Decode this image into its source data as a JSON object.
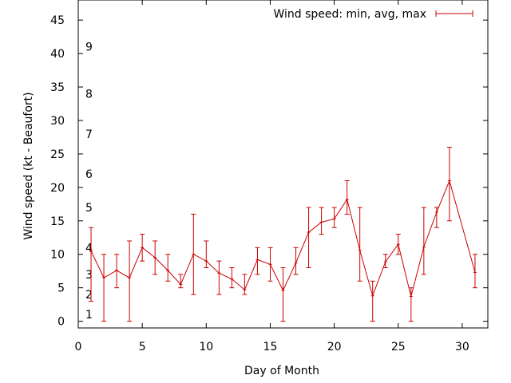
{
  "chart_data": {
    "type": "line",
    "xlabel": "Day of Month",
    "ylabel": "Wind speed (kt - Beaufort)",
    "xlim": [
      0,
      32
    ],
    "ylim": [
      -1,
      48
    ],
    "xticks": [
      0,
      5,
      10,
      15,
      20,
      25,
      30
    ],
    "yticks": [
      0,
      5,
      10,
      15,
      20,
      25,
      30,
      35,
      40,
      45
    ],
    "beaufort_labels": [
      {
        "label": "1",
        "y": 1
      },
      {
        "label": "2",
        "y": 4
      },
      {
        "label": "3",
        "y": 7
      },
      {
        "label": "4",
        "y": 11
      },
      {
        "label": "5",
        "y": 17
      },
      {
        "label": "6",
        "y": 22
      },
      {
        "label": "7",
        "y": 28
      },
      {
        "label": "8",
        "y": 34
      },
      {
        "label": "9",
        "y": 41
      }
    ],
    "grid": false,
    "legend_position": "top-right",
    "series": [
      {
        "name": "Wind speed: min, avg, max",
        "color": "#cc0000",
        "points": [
          {
            "x": 1,
            "avg": 10.5,
            "min": 3,
            "max": 14
          },
          {
            "x": 2,
            "avg": 6.5,
            "min": 0,
            "max": 10
          },
          {
            "x": 3,
            "avg": 7.6,
            "min": 5,
            "max": 10
          },
          {
            "x": 4,
            "avg": 6.5,
            "min": 0,
            "max": 12
          },
          {
            "x": 5,
            "avg": 11,
            "min": 9,
            "max": 13
          },
          {
            "x": 6,
            "avg": 9.5,
            "min": 7,
            "max": 12
          },
          {
            "x": 7,
            "avg": 7.6,
            "min": 6,
            "max": 10
          },
          {
            "x": 8,
            "avg": 5.5,
            "min": 5,
            "max": 7
          },
          {
            "x": 9,
            "avg": 10,
            "min": 4,
            "max": 16
          },
          {
            "x": 10,
            "avg": 9,
            "min": 8,
            "max": 12
          },
          {
            "x": 11,
            "avg": 7.2,
            "min": 4,
            "max": 9
          },
          {
            "x": 12,
            "avg": 6.3,
            "min": 5,
            "max": 8
          },
          {
            "x": 13,
            "avg": 4.7,
            "min": 4,
            "max": 7
          },
          {
            "x": 14,
            "avg": 9.2,
            "min": 7,
            "max": 11
          },
          {
            "x": 15,
            "avg": 8.5,
            "min": 6,
            "max": 11
          },
          {
            "x": 16,
            "avg": 4.6,
            "min": 0,
            "max": 8
          },
          {
            "x": 17,
            "avg": 8.7,
            "min": 7,
            "max": 11
          },
          {
            "x": 18,
            "avg": 13.3,
            "min": 8,
            "max": 17
          },
          {
            "x": 19,
            "avg": 14.8,
            "min": 13,
            "max": 17
          },
          {
            "x": 20,
            "avg": 15.3,
            "min": 14,
            "max": 17
          },
          {
            "x": 21,
            "avg": 18.2,
            "min": 16,
            "max": 21
          },
          {
            "x": 22,
            "avg": 10.6,
            "min": 6,
            "max": 17
          },
          {
            "x": 23,
            "avg": 3.8,
            "min": 0,
            "max": 6
          },
          {
            "x": 24,
            "avg": 8.9,
            "min": 8,
            "max": 10
          },
          {
            "x": 25,
            "avg": 11.5,
            "min": 10,
            "max": 13
          },
          {
            "x": 26,
            "avg": 3.7,
            "min": 0,
            "max": 5
          },
          {
            "x": 27,
            "avg": 11.1,
            "min": 7,
            "max": 17
          },
          {
            "x": 28,
            "avg": 16.3,
            "min": 14,
            "max": 17
          },
          {
            "x": 29,
            "avg": 21,
            "min": 15,
            "max": 26
          },
          {
            "x": 31,
            "avg": 7.3,
            "min": 5,
            "max": 10
          }
        ]
      }
    ]
  }
}
